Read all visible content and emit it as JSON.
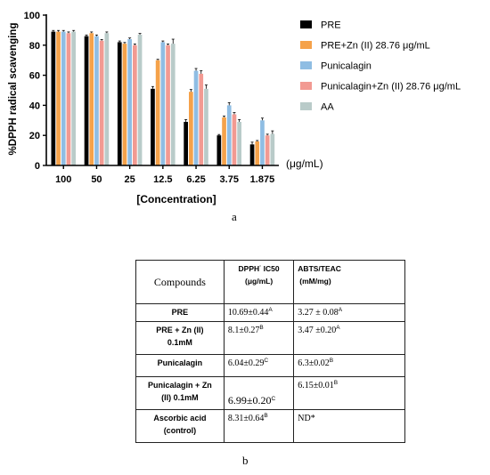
{
  "chart_data": {
    "type": "bar",
    "title": "",
    "ylabel": "%DPPH radical scavenging",
    "xlabel": "[Concentration]",
    "unit_label": "(μg/mL)",
    "ylim": [
      0,
      100
    ],
    "yticks": [
      0,
      20,
      40,
      60,
      80,
      100
    ],
    "categories": [
      "100",
      "50",
      "25",
      "12.5",
      "6.25",
      "3.75",
      "1.875"
    ],
    "legend_position": "right",
    "series": [
      {
        "name": "PRE",
        "color": "#000000",
        "values": [
          89,
          86,
          82,
          51,
          29,
          20,
          14
        ],
        "errors": [
          0.8,
          0.8,
          0.8,
          1.5,
          1.5,
          0.6,
          1.5
        ]
      },
      {
        "name": "PRE+Zn (II) 28.76 μg/mL",
        "color": "#f5a24a",
        "values": [
          89,
          88,
          81,
          70,
          49,
          32,
          16
        ],
        "errors": [
          0.8,
          0.8,
          0.8,
          0.6,
          1.5,
          0.8,
          0.6
        ]
      },
      {
        "name": "Punicalagin",
        "color": "#8fbde3",
        "values": [
          89,
          86,
          84,
          82,
          63,
          40,
          30
        ],
        "errors": [
          0.8,
          0.8,
          0.8,
          0.8,
          1.5,
          1.8,
          1.5
        ]
      },
      {
        "name": "Punicalagin+Zn (II) 28.76 μg/mL",
        "color": "#f29a92",
        "values": [
          88,
          83,
          80,
          80,
          61,
          34,
          20
        ],
        "errors": [
          0.8,
          0.8,
          0.8,
          0.8,
          2.0,
          1.2,
          0.8
        ]
      },
      {
        "name": "AA",
        "color": "#b9cbc9",
        "values": [
          89,
          88,
          87,
          81,
          51,
          29,
          21
        ],
        "errors": [
          0.8,
          0.8,
          0.8,
          3.0,
          2.5,
          1.5,
          2.0
        ]
      }
    ]
  },
  "panel_a_label": "a",
  "panel_b_label": "b",
  "table": {
    "header": {
      "col1": "Compounds",
      "col2_line1": "DPPH",
      "col2_dot": "·",
      "col2_line1b": " IC50",
      "col2_line2": "(μg/mL)",
      "col3_line1": "ABTS/TEAC",
      "col3_line2": "(mM/mg)"
    },
    "rows": [
      {
        "name_line1": "PRE",
        "name_line2": "",
        "dpph": "10.69±0.44",
        "dpph_sup": "A",
        "abts": "3.27 ± 0.08",
        "abts_sup": "A"
      },
      {
        "name_line1": "PRE + Zn (II)",
        "name_line2": "0.1mM",
        "dpph": "8.1±0.27",
        "dpph_sup": "B",
        "abts": "3.47 ±0.20",
        "abts_sup": "A"
      },
      {
        "name_line1": "Punicalagin",
        "name_line2": "",
        "dpph": "6.04±0.29",
        "dpph_sup": "C",
        "abts": "6.3±0.02",
        "abts_sup": "B"
      },
      {
        "name_line1": "Punicalagin + Zn",
        "name_line2": "(II) 0.1mM",
        "dpph": "6.99±0.20",
        "dpph_sup": "C",
        "abts": "6.15±0.01",
        "abts_sup": "B"
      },
      {
        "name_line1": "Ascorbic acid",
        "name_line2": "(control)",
        "dpph": "8.31±0.64",
        "dpph_sup": "B",
        "abts": "ND*",
        "abts_sup": ""
      }
    ]
  }
}
